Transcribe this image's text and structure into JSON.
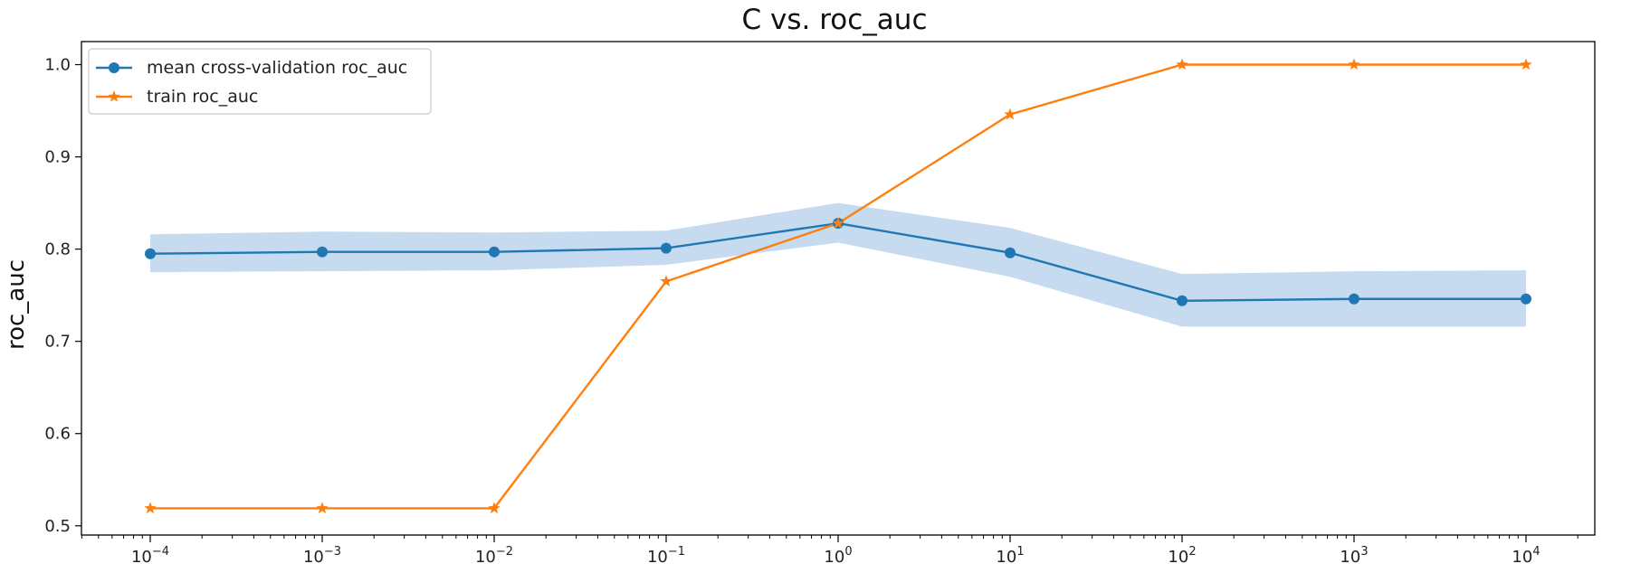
{
  "chart_data": {
    "type": "line",
    "title": "C vs. roc_auc",
    "xlabel": "",
    "ylabel": "roc_auc",
    "x_scale": "log",
    "x": [
      0.0001,
      0.001,
      0.01,
      0.1,
      1,
      10,
      100,
      1000,
      10000
    ],
    "x_tick_labels": [
      {
        "base": "10",
        "exp": "−4"
      },
      {
        "base": "10",
        "exp": "−3"
      },
      {
        "base": "10",
        "exp": "−2"
      },
      {
        "base": "10",
        "exp": "−1"
      },
      {
        "base": "10",
        "exp": "0"
      },
      {
        "base": "10",
        "exp": "1"
      },
      {
        "base": "10",
        "exp": "2"
      },
      {
        "base": "10",
        "exp": "3"
      },
      {
        "base": "10",
        "exp": "4"
      }
    ],
    "xlim_exp": [
      -4.4,
      4.4
    ],
    "ylim": [
      0.49,
      1.025
    ],
    "y_ticks": [
      0.5,
      0.6,
      0.7,
      0.8,
      0.9,
      1.0
    ],
    "y_tick_labels": [
      "0.5",
      "0.6",
      "0.7",
      "0.8",
      "0.9",
      "1.0"
    ],
    "grid": false,
    "legend_position": "top-left",
    "series": [
      {
        "name": "mean cross-validation roc_auc",
        "color": "#1f77b4",
        "marker": "circle",
        "values": [
          0.795,
          0.797,
          0.797,
          0.801,
          0.828,
          0.796,
          0.744,
          0.746,
          0.746
        ],
        "band_lower": [
          0.775,
          0.776,
          0.777,
          0.783,
          0.807,
          0.77,
          0.716,
          0.716,
          0.716
        ],
        "band_upper": [
          0.816,
          0.819,
          0.818,
          0.82,
          0.85,
          0.823,
          0.773,
          0.776,
          0.777
        ],
        "band_color": "#c6dbef"
      },
      {
        "name": "train roc_auc",
        "color": "#ff7f0e",
        "marker": "star",
        "values": [
          0.519,
          0.519,
          0.519,
          0.765,
          0.828,
          0.946,
          1.0,
          1.0,
          1.0
        ]
      }
    ]
  }
}
